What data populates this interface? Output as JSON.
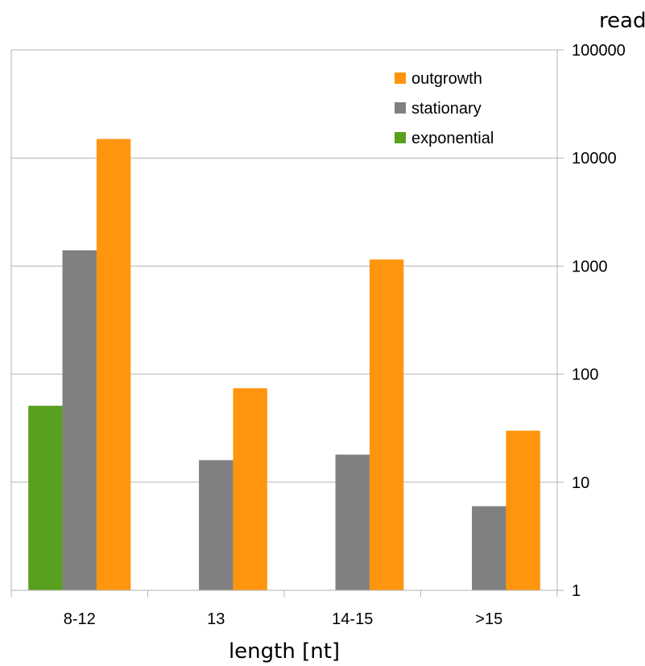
{
  "chart_data": {
    "type": "bar",
    "categories": [
      "8-12",
      "13",
      "14-15",
      ">15"
    ],
    "series": [
      {
        "name": "exponential",
        "color": "#59a01e",
        "values": [
          51,
          0,
          0,
          0
        ]
      },
      {
        "name": "stationary",
        "color": "#808080",
        "values": [
          1400,
          16,
          18,
          6
        ]
      },
      {
        "name": "outgrowth",
        "color": "#ff950e",
        "values": [
          15000,
          74,
          1150,
          30
        ]
      }
    ],
    "legend_order": [
      "outgrowth",
      "stationary",
      "exponential"
    ],
    "legend_position": "top-right",
    "xlabel": "length [nt]",
    "ylabel": "reads",
    "yscale": "log",
    "ylim": [
      1,
      100000
    ],
    "yticks": [
      "1",
      "10",
      "100",
      "1000",
      "10000",
      "100000"
    ],
    "grid": true,
    "y_axis_side": "right"
  }
}
